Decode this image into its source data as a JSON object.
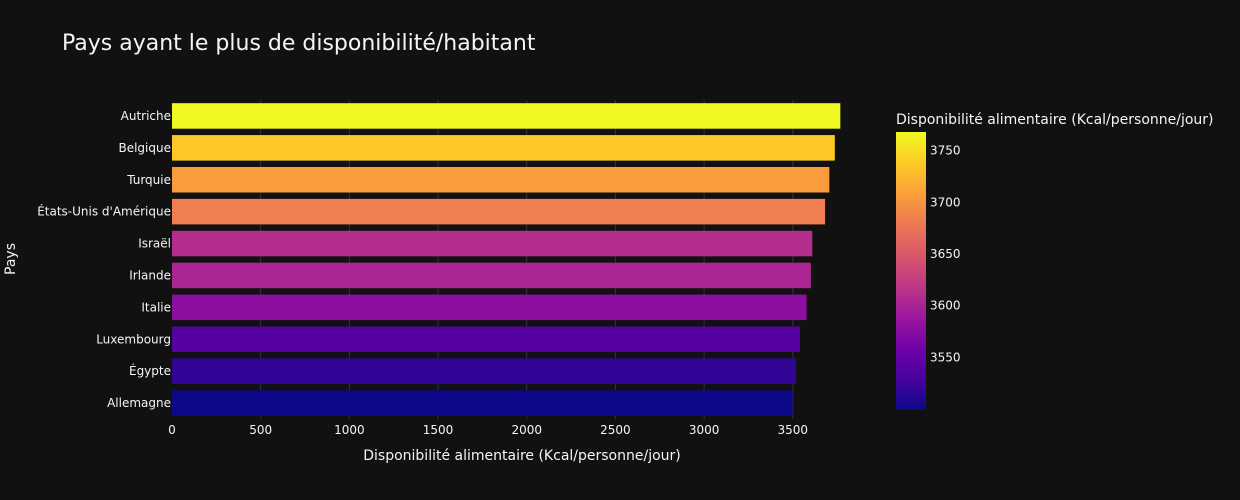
{
  "chart_data": {
    "type": "bar",
    "orientation": "horizontal",
    "title": "Pays ayant le plus de disponibilité/habitant",
    "xlabel": "Disponibilité alimentaire (Kcal/personne/jour)",
    "ylabel": "Pays",
    "xlim": [
      0,
      3800
    ],
    "xticks": [
      0,
      500,
      1000,
      1500,
      2000,
      2500,
      3000,
      3500
    ],
    "grid": true,
    "categories": [
      "Autriche",
      "Belgique",
      "Turquie",
      "États-Unis d'Amérique",
      "Israël",
      "Irlande",
      "Italie",
      "Luxembourg",
      "Égypte",
      "Allemagne"
    ],
    "values": [
      3768,
      3737,
      3706,
      3682,
      3610,
      3602,
      3578,
      3540,
      3518,
      3499
    ],
    "colorbar": {
      "title": "Disponibilité alimentaire (Kcal/personne/jour)",
      "colorscale": "plasma",
      "range": [
        3499,
        3768
      ],
      "ticks": [
        3550,
        3600,
        3650,
        3700,
        3750
      ]
    },
    "background": "#111111",
    "grid_color": "#283442"
  }
}
